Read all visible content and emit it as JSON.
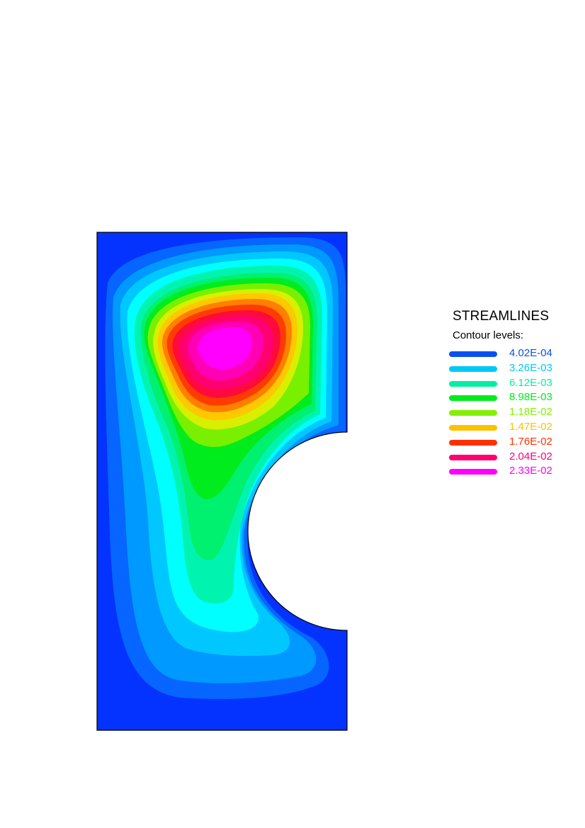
{
  "chart_data": {
    "type": "heatmap",
    "title": "STREAMLINES",
    "subtitle": "Contour levels:",
    "legend": "right",
    "levels": [
      {
        "value": "4.02E-04",
        "color": "#0a50f0"
      },
      {
        "value": "3.26E-03",
        "color": "#00c8f5"
      },
      {
        "value": "6.12E-03",
        "color": "#00f0a0"
      },
      {
        "value": "8.98E-03",
        "color": "#00ec1c"
      },
      {
        "value": "1.18E-02",
        "color": "#84f000"
      },
      {
        "value": "1.47E-02",
        "color": "#ffc000"
      },
      {
        "value": "1.76E-02",
        "color": "#ff3000"
      },
      {
        "value": "2.04E-02",
        "color": "#ff0070"
      },
      {
        "value": "2.33E-02",
        "color": "#ff00ff"
      }
    ]
  }
}
